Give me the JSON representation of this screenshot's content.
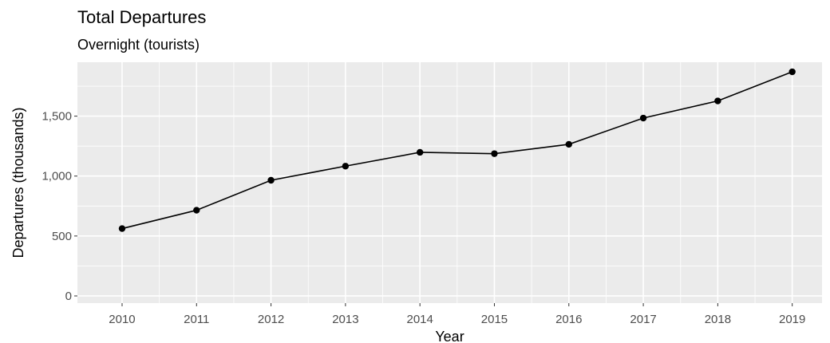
{
  "chart_data": {
    "type": "line",
    "title": "Total Departures",
    "subtitle": "Overnight (tourists)",
    "xlabel": "Year",
    "ylabel": "Departures (thousands)",
    "x": [
      2010,
      2011,
      2012,
      2013,
      2014,
      2015,
      2016,
      2017,
      2018,
      2019
    ],
    "series": [
      {
        "values": [
          562,
          715,
          965,
          1083,
          1198,
          1187,
          1265,
          1484,
          1627,
          1870
        ]
      }
    ],
    "ylim": [
      -60,
      1950
    ],
    "xlim": [
      2009.4,
      2019.4
    ],
    "yticks": [
      0,
      500,
      1000,
      1500
    ],
    "ytick_labels": [
      "0",
      "500",
      "1,000",
      "1,500"
    ],
    "xtick_labels": [
      "2010",
      "2011",
      "2012",
      "2013",
      "2014",
      "2015",
      "2016",
      "2017",
      "2018",
      "2019"
    ],
    "grid": true,
    "legend": "none",
    "colors": {
      "panel": "#ebebeb",
      "grid": "#ffffff",
      "line": "#000000",
      "tick_text": "#4d4d4d"
    }
  }
}
